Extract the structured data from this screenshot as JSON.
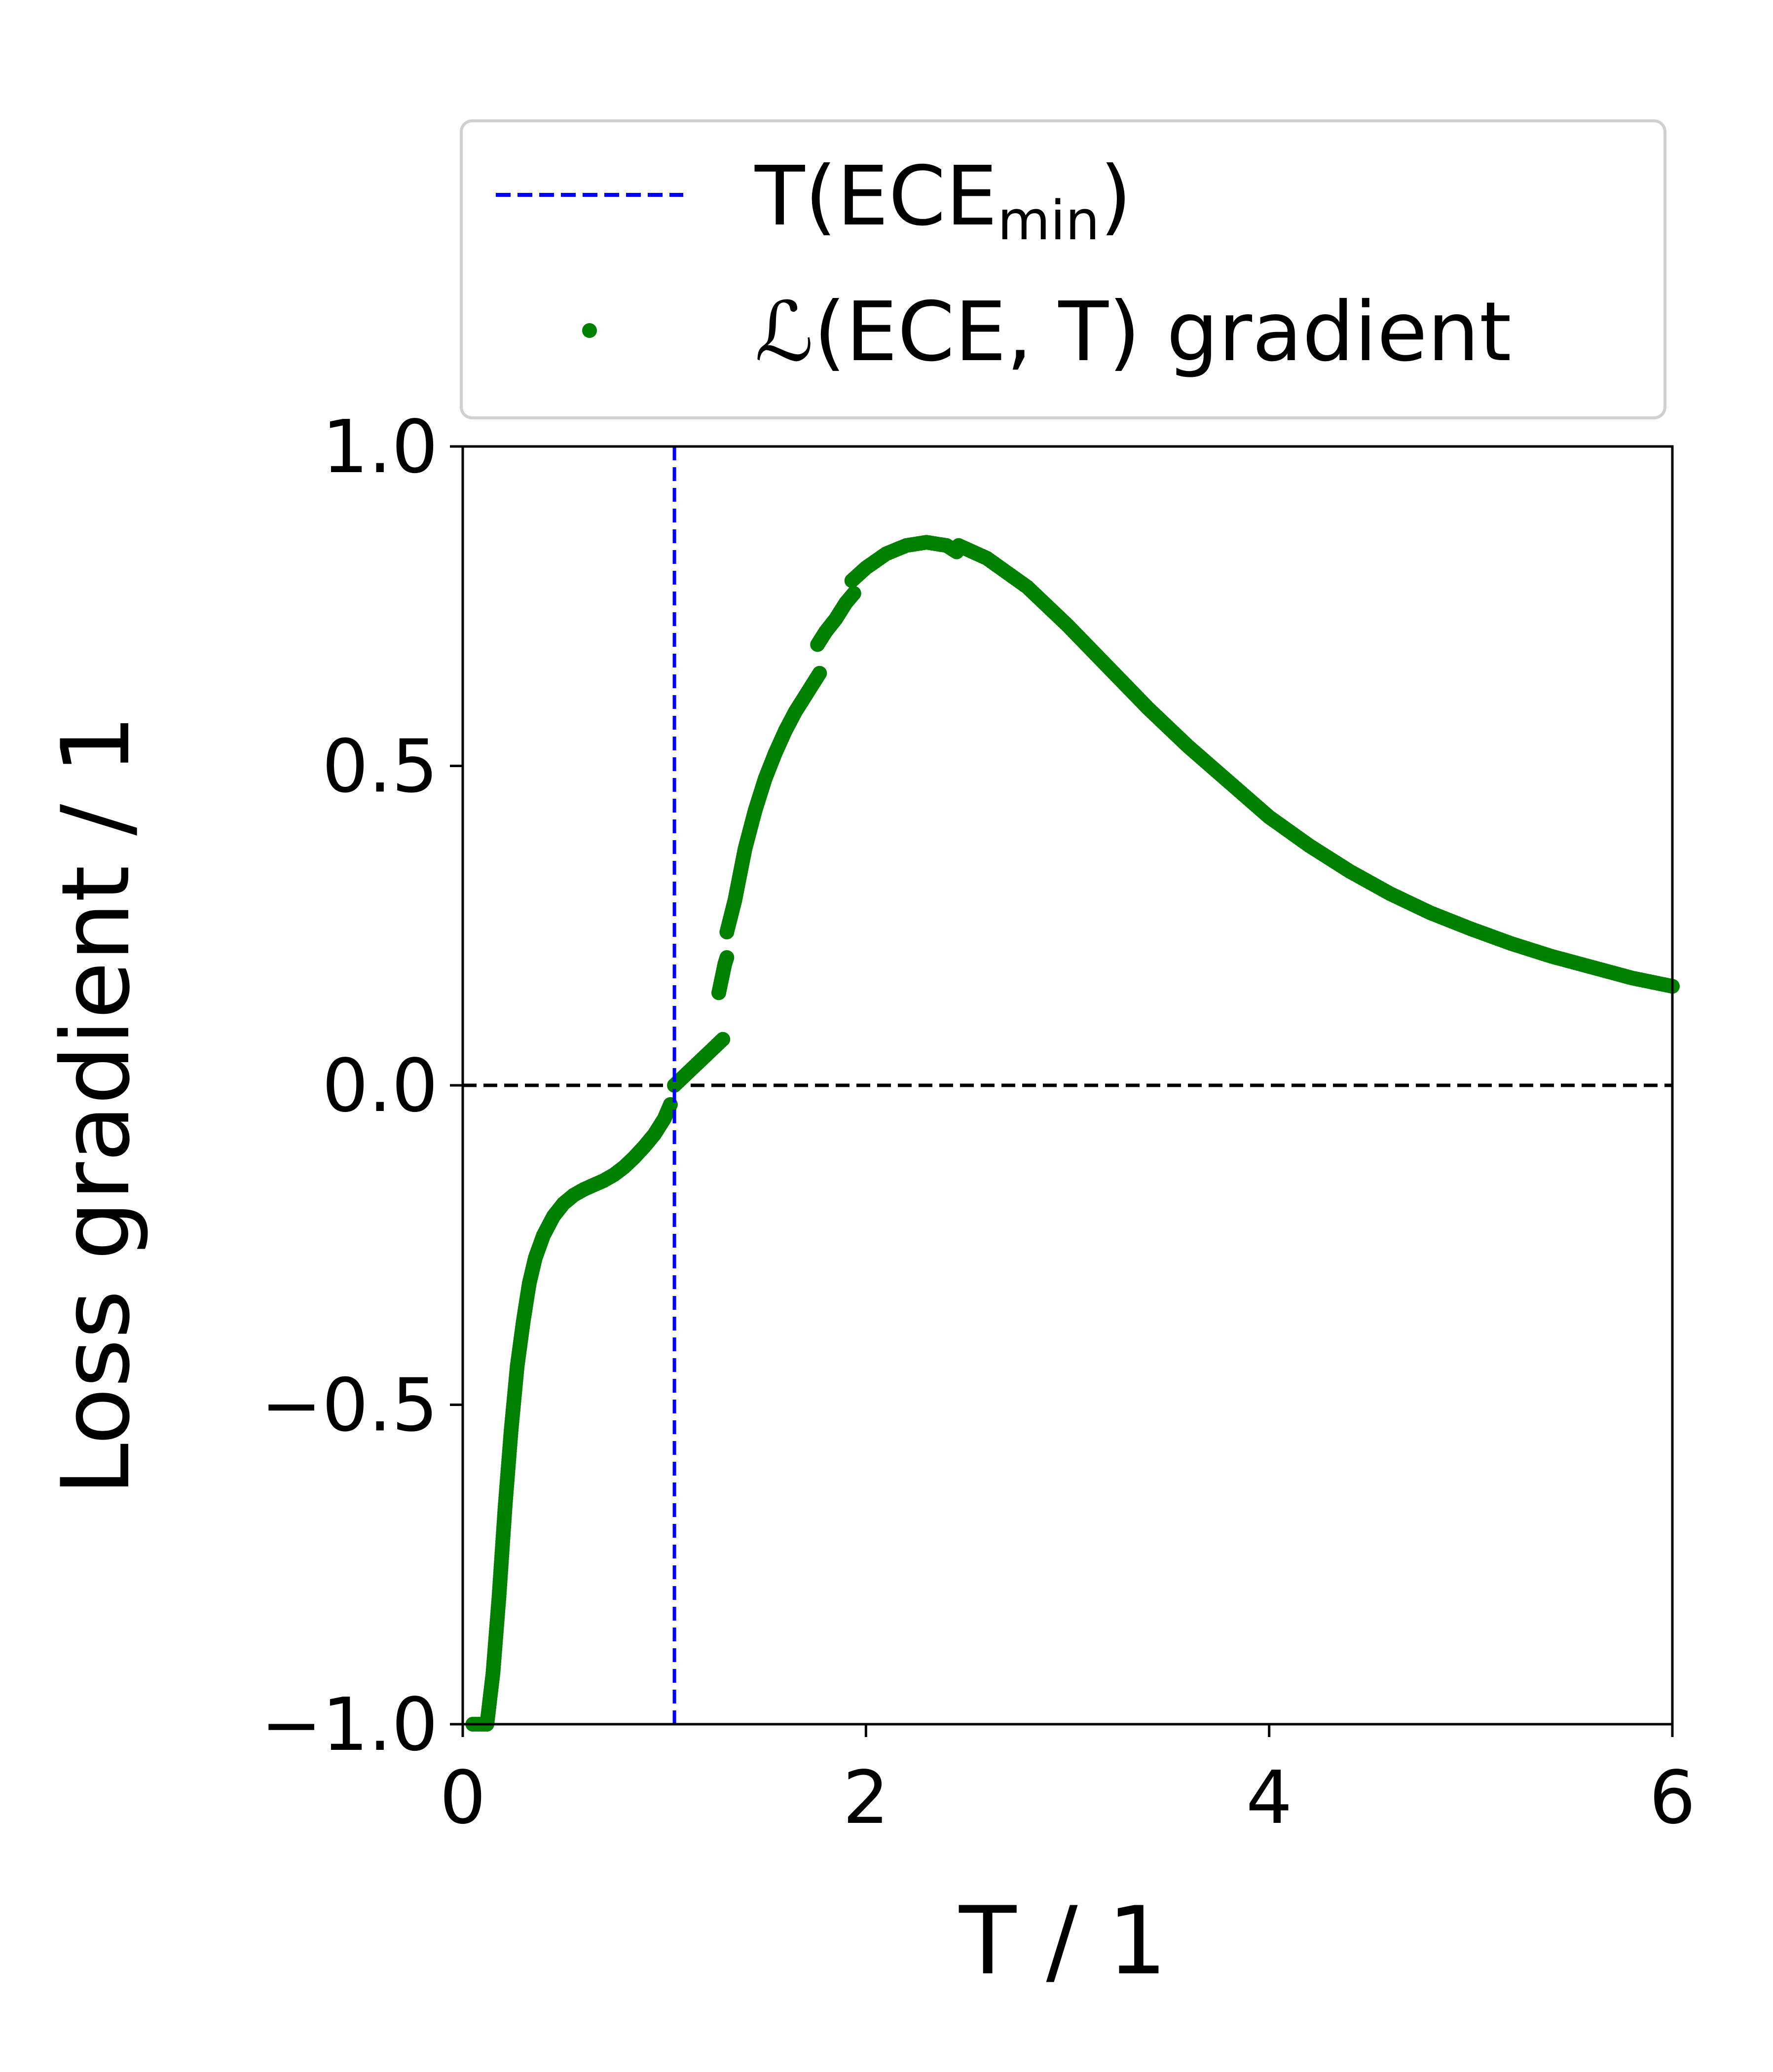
{
  "chart_data": {
    "type": "scatter",
    "title": "",
    "xlabel": "T / 1",
    "ylabel": "Loss gradient / 1",
    "xlim": [
      0,
      6
    ],
    "ylim": [
      -1.0,
      1.0
    ],
    "x_ticks": [
      0,
      2,
      4,
      6
    ],
    "x_tick_labels": [
      "0",
      "2",
      "4",
      "6"
    ],
    "y_ticks": [
      -1.0,
      -0.5,
      0.0,
      0.5,
      1.0
    ],
    "y_tick_labels": [
      "−1.0",
      "−0.5",
      "0.0",
      "0.5",
      "1.0"
    ],
    "grid": false,
    "legend": {
      "placement": "above-plot",
      "entries": [
        {
          "label_main": "T(ECE",
          "label_sub": "min",
          "label_end": ")",
          "style": "dashed-line",
          "color": "#0000ff"
        },
        {
          "label_main": "ℒ(ECE, T) gradient",
          "style": "dot",
          "color": "#008000"
        }
      ]
    },
    "reference_lines": [
      {
        "orientation": "vertical",
        "value": 1.05,
        "color": "#0000ff",
        "style": "dashed",
        "name": "T(ECE_min)"
      },
      {
        "orientation": "horizontal",
        "value": 0.0,
        "color": "#000000",
        "style": "dashed",
        "name": "zero"
      }
    ],
    "series": [
      {
        "name": "ℒ(ECE, T) gradient",
        "color": "#008000",
        "segments": [
          [
            [
              0.05,
              -1.0
            ],
            [
              0.12,
              -1.0
            ],
            [
              0.15,
              -0.92
            ],
            [
              0.18,
              -0.8
            ],
            [
              0.21,
              -0.66
            ],
            [
              0.24,
              -0.54
            ],
            [
              0.27,
              -0.44
            ],
            [
              0.3,
              -0.37
            ],
            [
              0.33,
              -0.31
            ],
            [
              0.36,
              -0.27
            ],
            [
              0.4,
              -0.235
            ],
            [
              0.45,
              -0.205
            ],
            [
              0.5,
              -0.185
            ],
            [
              0.55,
              -0.172
            ],
            [
              0.6,
              -0.163
            ],
            [
              0.65,
              -0.156
            ],
            [
              0.7,
              -0.149
            ],
            [
              0.75,
              -0.14
            ],
            [
              0.8,
              -0.128
            ],
            [
              0.85,
              -0.113
            ],
            [
              0.9,
              -0.096
            ],
            [
              0.95,
              -0.077
            ],
            [
              1.0,
              -0.052
            ],
            [
              1.03,
              -0.03
            ]
          ],
          [
            [
              1.05,
              0.0
            ],
            [
              1.1,
              0.015
            ],
            [
              1.15,
              0.03
            ],
            [
              1.2,
              0.045
            ],
            [
              1.25,
              0.06
            ],
            [
              1.29,
              0.072
            ]
          ],
          [
            [
              1.27,
              0.145
            ],
            [
              1.3,
              0.19
            ],
            [
              1.31,
              0.2
            ]
          ],
          [
            [
              1.31,
              0.24
            ],
            [
              1.35,
              0.29
            ],
            [
              1.4,
              0.37
            ],
            [
              1.45,
              0.43
            ],
            [
              1.5,
              0.48
            ],
            [
              1.55,
              0.52
            ],
            [
              1.6,
              0.555
            ],
            [
              1.65,
              0.585
            ],
            [
              1.7,
              0.61
            ],
            [
              1.75,
              0.635
            ],
            [
              1.77,
              0.645
            ]
          ],
          [
            [
              1.76,
              0.69
            ],
            [
              1.8,
              0.71
            ],
            [
              1.85,
              0.73
            ],
            [
              1.9,
              0.755
            ],
            [
              1.94,
              0.77
            ]
          ],
          [
            [
              1.93,
              0.79
            ],
            [
              2.0,
              0.81
            ],
            [
              2.1,
              0.832
            ],
            [
              2.2,
              0.845
            ],
            [
              2.3,
              0.85
            ],
            [
              2.4,
              0.845
            ],
            [
              2.45,
              0.835
            ]
          ],
          [
            [
              2.46,
              0.845
            ],
            [
              2.6,
              0.825
            ],
            [
              2.8,
              0.78
            ],
            [
              3.0,
              0.72
            ],
            [
              3.2,
              0.655
            ],
            [
              3.4,
              0.59
            ],
            [
              3.6,
              0.53
            ],
            [
              3.8,
              0.475
            ],
            [
              4.0,
              0.42
            ],
            [
              4.2,
              0.375
            ],
            [
              4.4,
              0.335
            ],
            [
              4.6,
              0.3
            ],
            [
              4.8,
              0.27
            ],
            [
              5.0,
              0.245
            ],
            [
              5.2,
              0.222
            ],
            [
              5.4,
              0.202
            ],
            [
              5.6,
              0.185
            ],
            [
              5.8,
              0.168
            ],
            [
              6.0,
              0.155
            ]
          ]
        ]
      }
    ]
  }
}
